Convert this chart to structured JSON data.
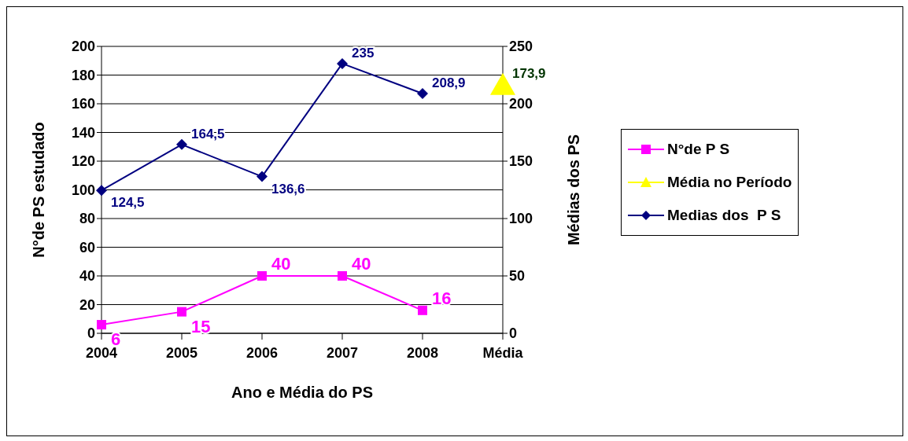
{
  "chart_data": {
    "type": "line",
    "xlabel": "Ano e Média do PS",
    "ylabel": "N°de PS estudado",
    "y2label": "Médias dos PS",
    "categories": [
      "2004",
      "2005",
      "2006",
      "2007",
      "2008",
      "Média"
    ],
    "series": [
      {
        "name": "N°de P S",
        "color": "#ff00ff",
        "marker": "square",
        "axis": "y",
        "values": [
          6,
          15,
          40,
          40,
          16,
          null
        ],
        "value_labels": [
          "6",
          "15",
          "40",
          "40",
          "16",
          null
        ]
      },
      {
        "name": "Média no Período",
        "color": "#ffff00",
        "marker": "triangle",
        "axis": "y",
        "values": [
          null,
          null,
          null,
          null,
          null,
          173.9
        ],
        "value_labels": [
          null,
          null,
          null,
          null,
          null,
          "173,9"
        ]
      },
      {
        "name": "Medias dos  P S",
        "color": "#000080",
        "marker": "diamond",
        "axis": "y2",
        "values": [
          124.5,
          164.5,
          136.6,
          235,
          208.9,
          null
        ],
        "value_labels": [
          "124,5",
          "164,5",
          "136,6",
          "235",
          "208,9",
          null
        ]
      }
    ],
    "ylim": [
      0,
      200
    ],
    "yticks": [
      0,
      20,
      40,
      60,
      80,
      100,
      120,
      140,
      160,
      180,
      200
    ],
    "y2lim": [
      0,
      250
    ],
    "y2ticks": [
      0,
      50,
      100,
      150,
      200,
      250
    ],
    "grid": "y",
    "legend": "right",
    "line_style": "solid"
  }
}
